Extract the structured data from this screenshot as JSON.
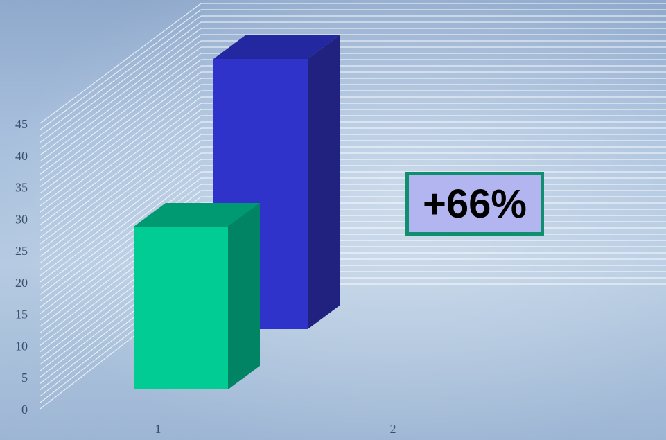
{
  "chart_data": {
    "type": "bar",
    "categories": [
      "1",
      "2"
    ],
    "values": [
      26,
      43
    ],
    "ylim": [
      0,
      45
    ],
    "yticks": [
      0,
      5,
      10,
      15,
      20,
      25,
      30,
      35,
      40,
      45
    ],
    "grid": true,
    "colors": {
      "front": [
        "#00cc94",
        "#3033c9"
      ],
      "side": [
        "#008463",
        "#21217f"
      ],
      "top": [
        "#009a72",
        "#2428a0"
      ]
    },
    "annotation": "+66%"
  }
}
